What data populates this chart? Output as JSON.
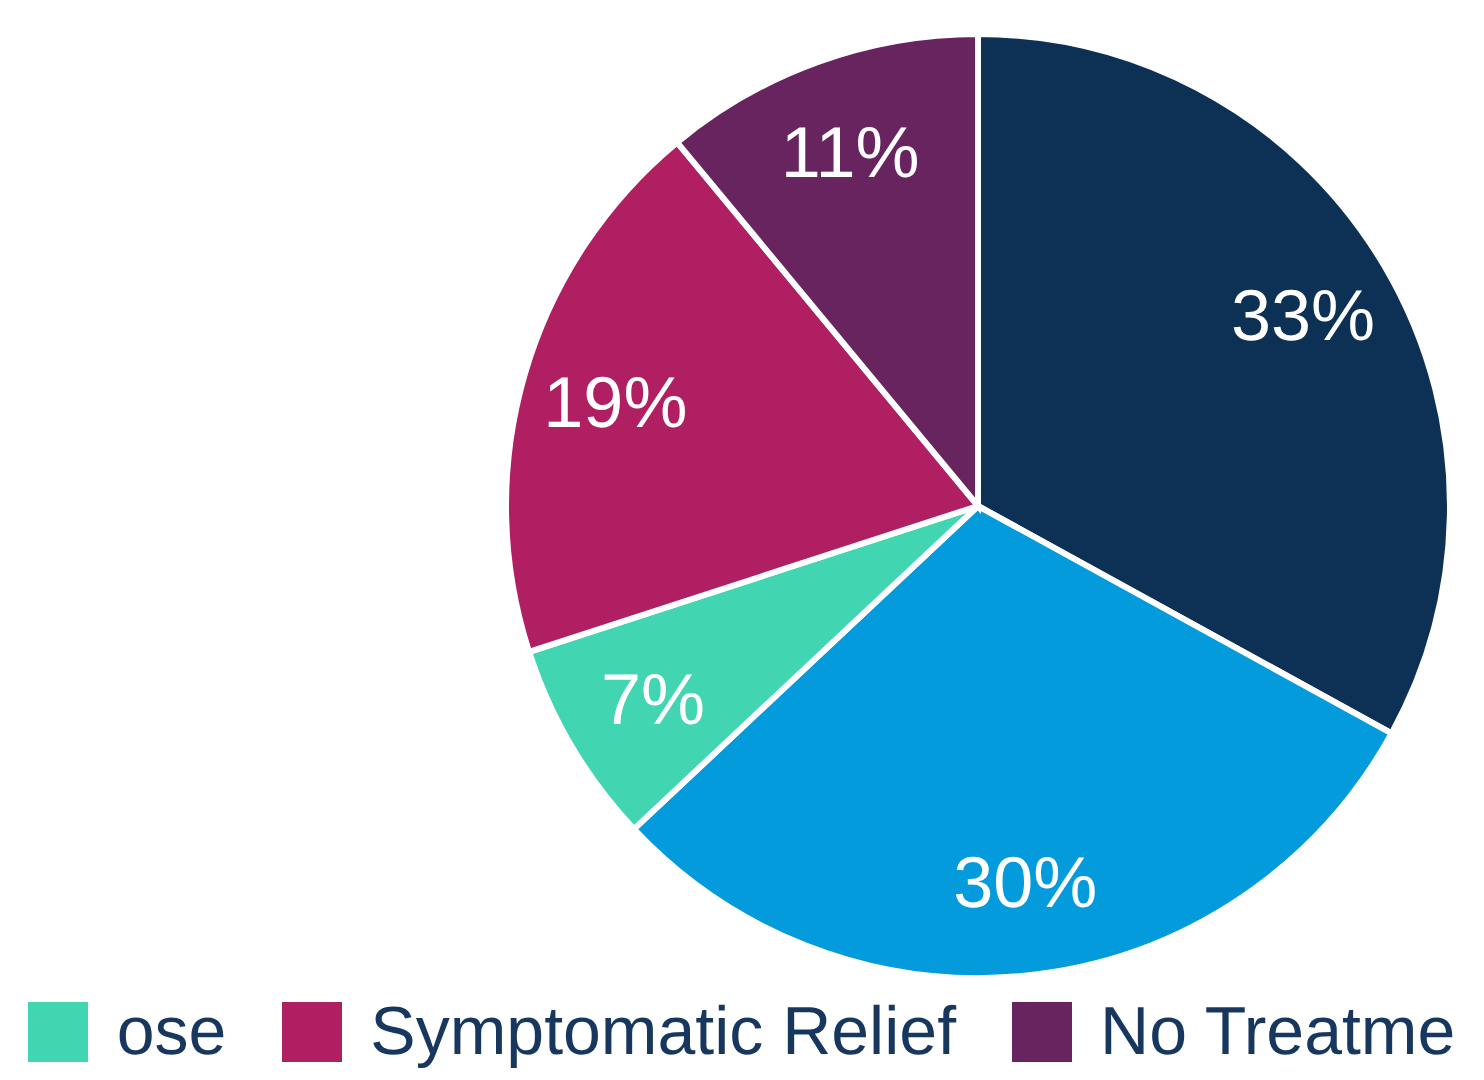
{
  "chart_data": {
    "type": "pie",
    "categories": [
      null,
      null,
      "ose",
      "Symptomatic Relief",
      "No Treatme"
    ],
    "values": [
      33,
      30,
      7,
      19,
      11
    ],
    "colors": [
      "#0c3154",
      "#039bdb",
      "#41d6b1",
      "#b01f62",
      "#67245f"
    ],
    "value_labels": [
      "33%",
      "30%",
      "7%",
      "19%",
      "11%"
    ],
    "legend": "bottom"
  }
}
